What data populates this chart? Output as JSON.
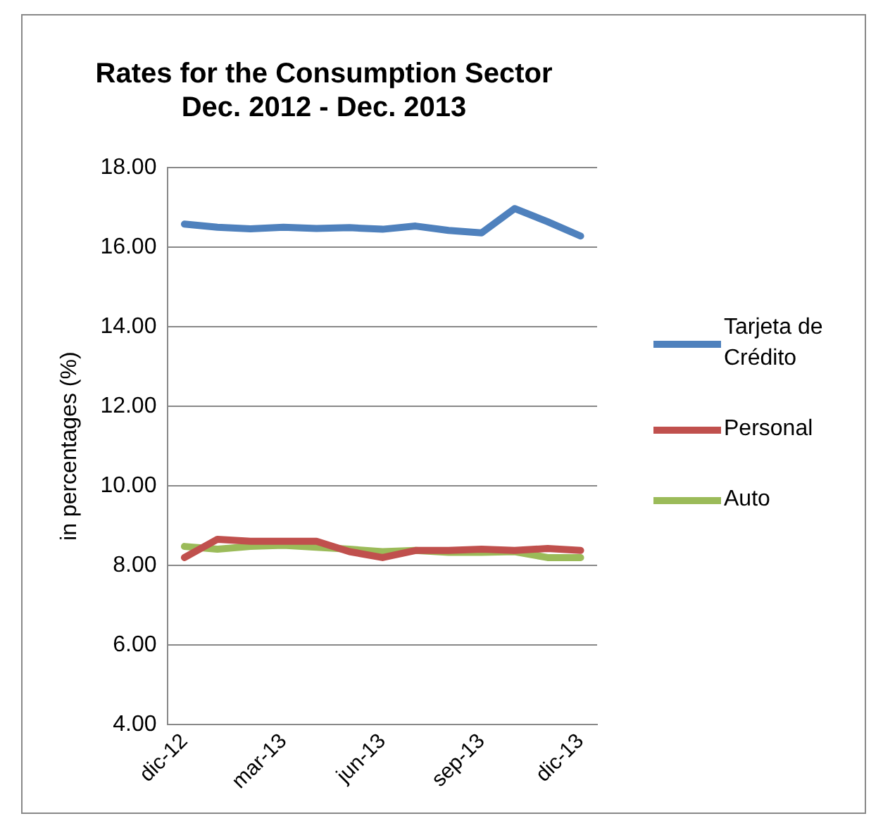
{
  "chart_data": {
    "type": "line",
    "title": "Rates for the Consumption Sector\nDec. 2012 - Dec. 2013",
    "ylabel": "in percentages (%)",
    "categories": [
      "dic-12",
      null,
      null,
      "mar-13",
      null,
      null,
      "jun-13",
      null,
      null,
      "sep-13",
      null,
      null,
      "dic-13"
    ],
    "series": [
      {
        "name": "Tarjeta de Crédito",
        "color": "#4f81bd",
        "values": [
          16.58,
          16.5,
          16.46,
          16.5,
          16.47,
          16.49,
          16.45,
          16.53,
          16.42,
          16.36,
          16.97,
          16.64,
          16.28
        ]
      },
      {
        "name": "Personal",
        "color": "#c0504d",
        "values": [
          8.2,
          8.66,
          8.61,
          8.61,
          8.61,
          8.35,
          8.2,
          8.38,
          8.38,
          8.41,
          8.38,
          8.43,
          8.38
        ]
      },
      {
        "name": "Auto",
        "color": "#9bbb59",
        "values": [
          8.48,
          8.41,
          8.48,
          8.51,
          8.46,
          8.41,
          8.35,
          8.38,
          8.33,
          8.33,
          8.35,
          8.2,
          8.2
        ]
      }
    ],
    "ylim": [
      4,
      18
    ],
    "yticks": [
      {
        "value": 4,
        "label": "4.00"
      },
      {
        "value": 6,
        "label": "6.00"
      },
      {
        "value": 8,
        "label": "8.00"
      },
      {
        "value": 10,
        "label": "10.00"
      },
      {
        "value": 12,
        "label": "12.00"
      },
      {
        "value": 14,
        "label": "14.00"
      },
      {
        "value": 16,
        "label": "16.00"
      },
      {
        "value": 18,
        "label": "18.00"
      }
    ],
    "grid": "y",
    "legend": "right",
    "marker": "none",
    "line_style": "solid"
  }
}
